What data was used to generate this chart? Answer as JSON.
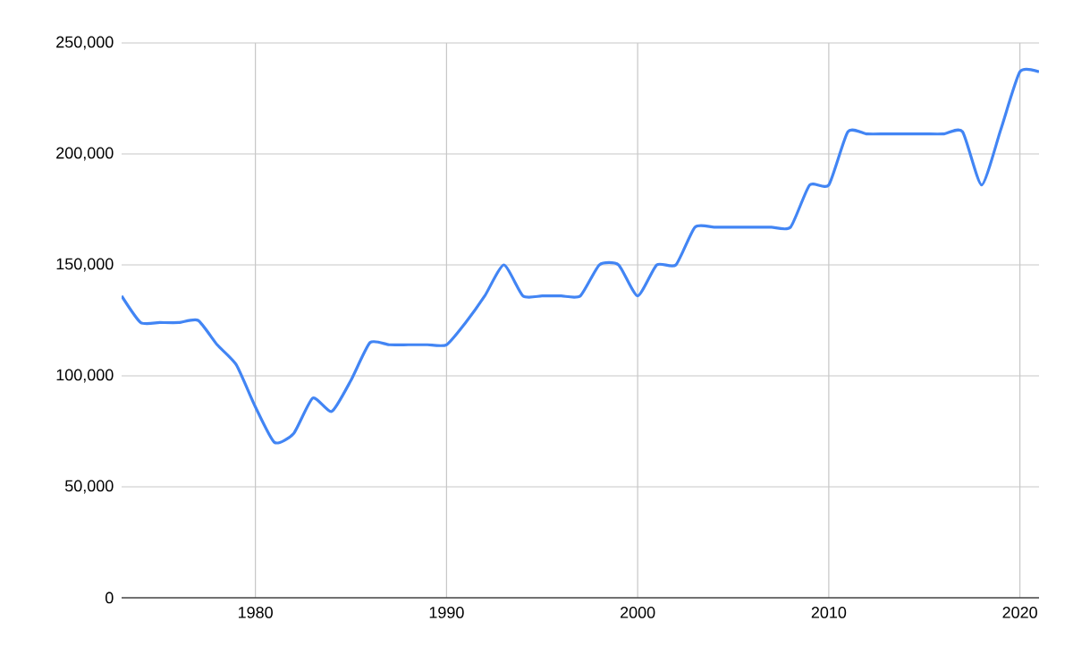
{
  "chart_data": {
    "type": "line",
    "x": [
      1973,
      1974,
      1975,
      1976,
      1977,
      1978,
      1979,
      1980,
      1981,
      1982,
      1983,
      1984,
      1985,
      1986,
      1987,
      1988,
      1989,
      1990,
      1991,
      1992,
      1993,
      1994,
      1995,
      1996,
      1997,
      1998,
      1999,
      2000,
      2001,
      2002,
      2003,
      2004,
      2005,
      2006,
      2007,
      2008,
      2009,
      2010,
      2011,
      2012,
      2013,
      2014,
      2015,
      2016,
      2017,
      2018,
      2019,
      2020,
      2021
    ],
    "series": [
      {
        "color": "#4285f4",
        "values": [
          136000,
          124000,
          124000,
          124000,
          125000,
          114000,
          105000,
          86000,
          70000,
          74000,
          90000,
          84000,
          98000,
          115000,
          114000,
          114000,
          114000,
          114000,
          124000,
          136000,
          150000,
          136000,
          136000,
          136000,
          136000,
          150000,
          150000,
          136000,
          150000,
          150000,
          167000,
          167000,
          167000,
          167000,
          167000,
          167000,
          186000,
          186000,
          210000,
          209000,
          209000,
          209000,
          209000,
          209000,
          210000,
          186000,
          211000,
          237000,
          237000
        ]
      }
    ],
    "xlim": [
      1973,
      2021
    ],
    "ylim": [
      0,
      250000
    ],
    "xticks": [
      1980,
      1990,
      2000,
      2010,
      2020
    ],
    "yticks": [
      {
        "value": 0,
        "label": "0"
      },
      {
        "value": 50000,
        "label": "50,000"
      },
      {
        "value": 100000,
        "label": "100,000"
      },
      {
        "value": 150000,
        "label": "150,000"
      },
      {
        "value": 200000,
        "label": "200,000"
      },
      {
        "value": 250000,
        "label": "250,000"
      }
    ],
    "grid": true
  }
}
